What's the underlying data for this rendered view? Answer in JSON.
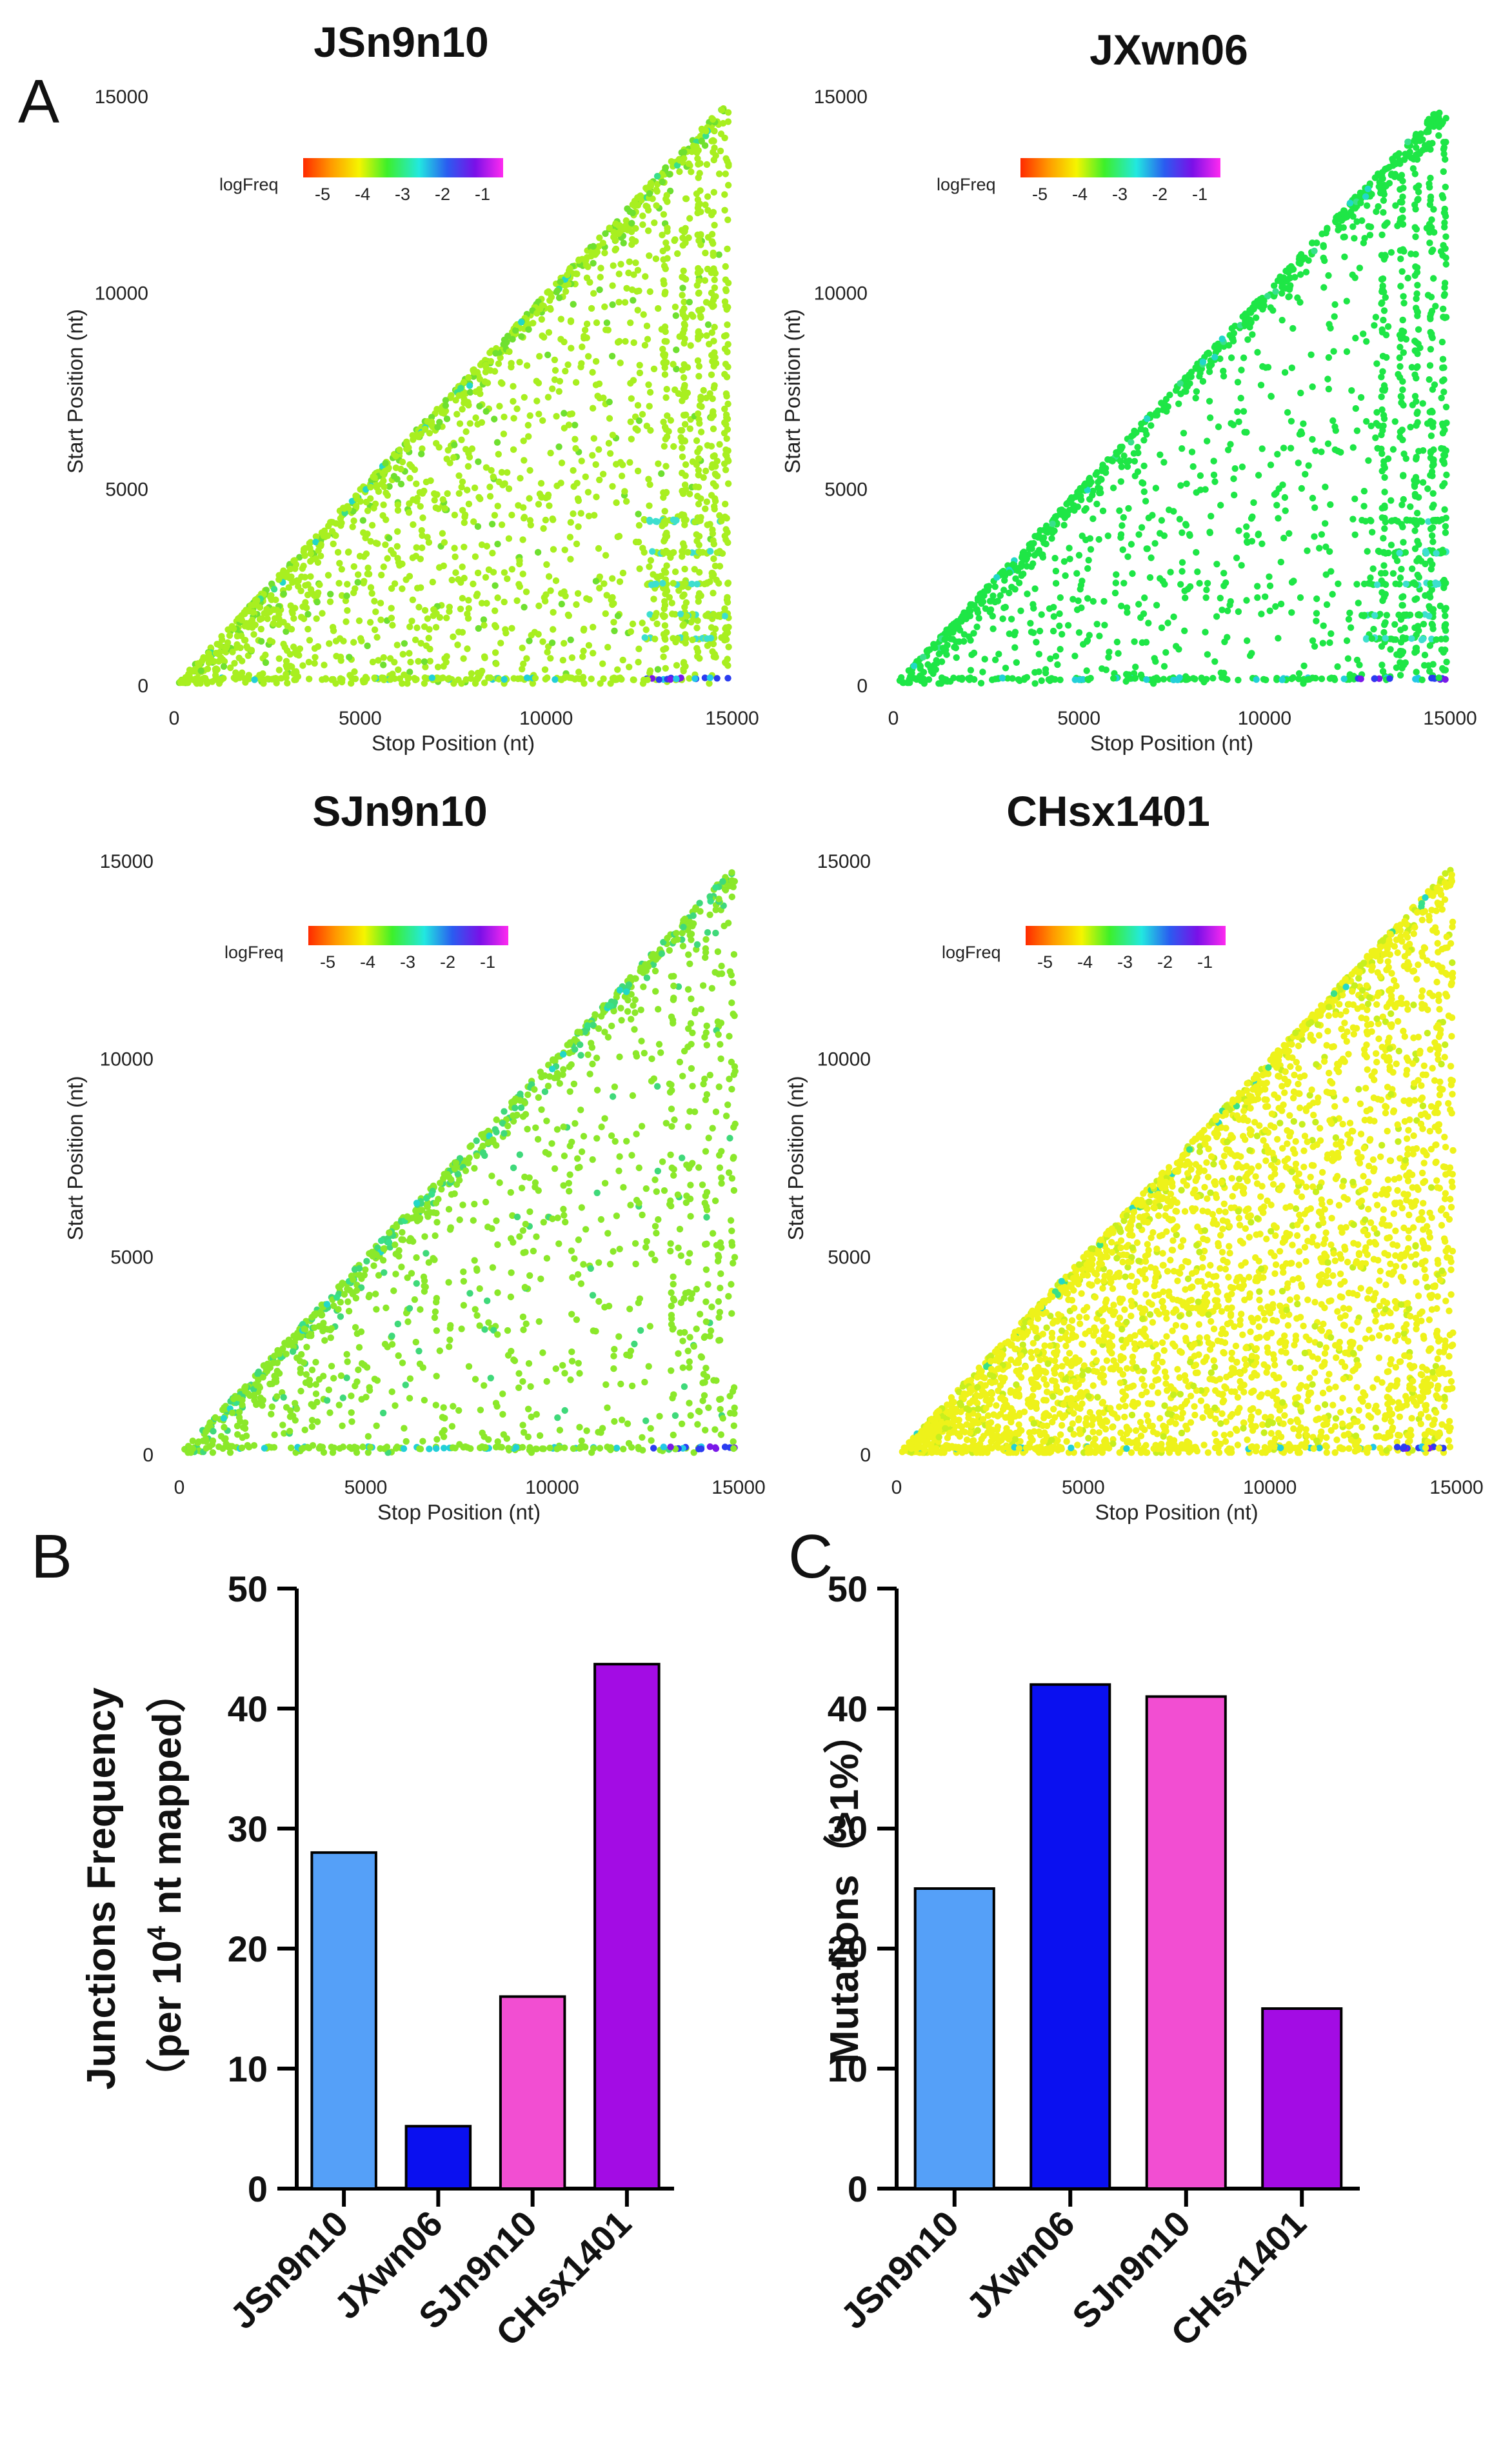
{
  "panels": {
    "a": "A",
    "b": "B",
    "c": "C"
  },
  "scatter_plots": [
    {
      "title": "JSn9n10",
      "xlabel": "Stop Position (nt)",
      "ylabel": "Start Position (nt)",
      "legend_label": "logFreq",
      "legend_ticks": [
        "-5",
        "-4",
        "-3",
        "-2",
        "-1"
      ],
      "x_ticks": [
        "0",
        "5000",
        "10000",
        "15000"
      ],
      "y_ticks": [
        "0",
        "5000",
        "10000",
        "15000"
      ],
      "xlim": [
        0,
        15000
      ],
      "ylim": [
        0,
        15000
      ],
      "dominant_color": "#a8ef20",
      "diagonal_color": "#6fe030",
      "density": "high",
      "clusters_near_end": true
    },
    {
      "title": "JXwn06",
      "xlabel": "Stop Position (nt)",
      "ylabel": "Start Position (nt)",
      "legend_label": "logFreq",
      "legend_ticks": [
        "-5",
        "-4",
        "-3",
        "-2",
        "-1"
      ],
      "x_ticks": [
        "0",
        "5000",
        "10000",
        "15000"
      ],
      "y_ticks": [
        "0",
        "5000",
        "10000",
        "15000"
      ],
      "xlim": [
        0,
        15000
      ],
      "ylim": [
        0,
        15000
      ],
      "dominant_color": "#1ee646",
      "diagonal_color": "#1ee646",
      "density": "low",
      "clusters_near_end": true
    },
    {
      "title": "SJn9n10",
      "xlabel": "Stop Position (nt)",
      "ylabel": "Start Position (nt)",
      "legend_label": "logFreq",
      "legend_ticks": [
        "-5",
        "-4",
        "-3",
        "-2",
        "-1"
      ],
      "x_ticks": [
        "0",
        "5000",
        "10000",
        "15000"
      ],
      "y_ticks": [
        "0",
        "5000",
        "10000",
        "15000"
      ],
      "xlim": [
        0,
        15000
      ],
      "ylim": [
        0,
        15000
      ],
      "dominant_color": "#8be82a",
      "diagonal_color": "#3fd97a",
      "density": "medium",
      "clusters_near_end": false
    },
    {
      "title": "CHsx1401",
      "xlabel": "Stop Position (nt)",
      "ylabel": "Start Position (nt)",
      "legend_label": "logFreq",
      "legend_ticks": [
        "-5",
        "-4",
        "-3",
        "-2",
        "-1"
      ],
      "x_ticks": [
        "0",
        "5000",
        "10000",
        "15000"
      ],
      "y_ticks": [
        "0",
        "5000",
        "10000",
        "15000"
      ],
      "xlim": [
        0,
        15000
      ],
      "ylim": [
        0,
        15000
      ],
      "dominant_color": "#eef21a",
      "diagonal_color": "#c7ef1e",
      "density": "very-high",
      "clusters_near_end": false
    }
  ],
  "chart_data": [
    {
      "type": "bar",
      "panel": "B",
      "categories": [
        "JSn9n10",
        "JXwn06",
        "SJn9n10",
        "CHsx1401"
      ],
      "values": [
        28,
        5.2,
        16,
        43.7
      ],
      "colors": [
        "#55a0f8",
        "#0a10f0",
        "#f24ed2",
        "#a30ce4"
      ],
      "ylabel_line1": "Junctions Frequency",
      "ylabel_line2_prefix": "（per 10",
      "ylabel_line2_sup": "4",
      "ylabel_line2_suffix": " nt mapped）",
      "ylim": [
        0,
        50
      ],
      "yticks": [
        "0",
        "10",
        "20",
        "30",
        "40",
        "50"
      ]
    },
    {
      "type": "bar",
      "panel": "C",
      "categories": [
        "JSn9n10",
        "JXwn06",
        "SJn9n10",
        "CHsx1401"
      ],
      "values": [
        25,
        42,
        41,
        15
      ],
      "colors": [
        "#55a0f8",
        "#0a10f0",
        "#f24ed2",
        "#a30ce4"
      ],
      "ylabel": "Mutations（>1%）",
      "ylim": [
        0,
        50
      ],
      "yticks": [
        "0",
        "10",
        "20",
        "30",
        "40",
        "50"
      ]
    }
  ]
}
